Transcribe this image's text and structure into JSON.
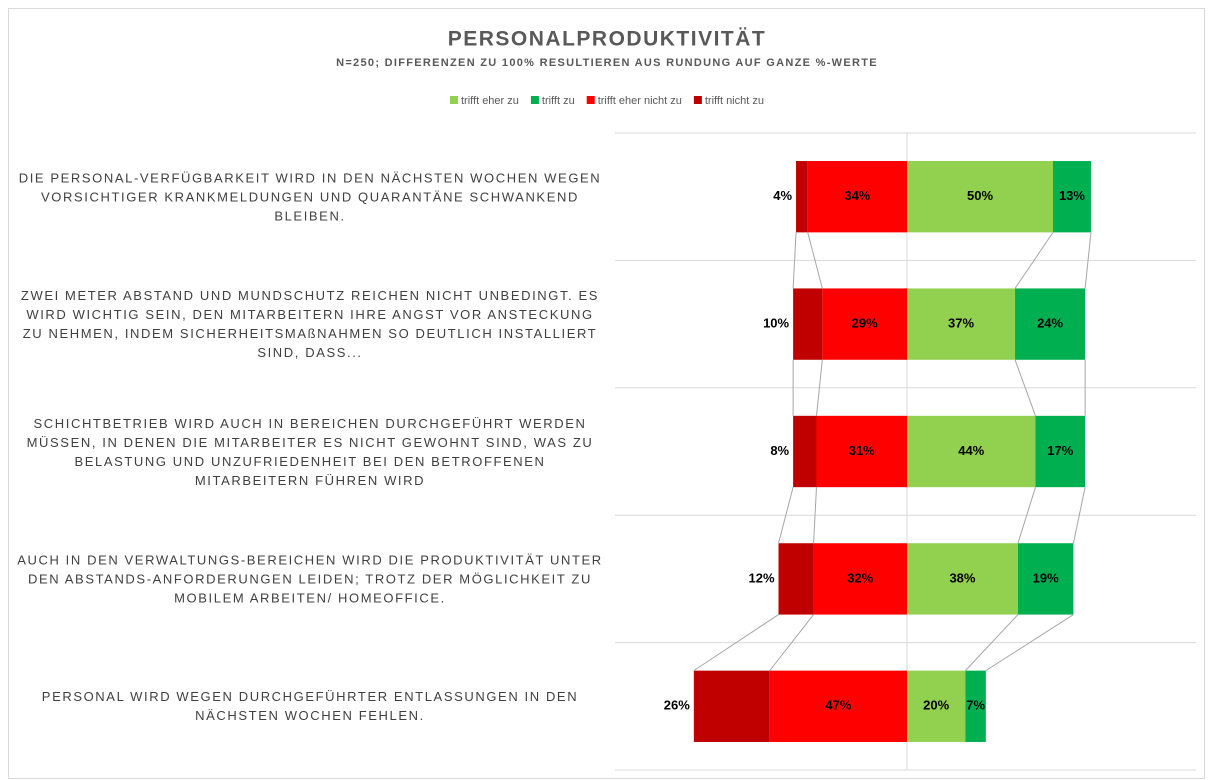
{
  "chart_data": {
    "type": "diverging_bar",
    "title": "PERSONALPRODUKTIVITÄT",
    "subtitle": "N=250; DIFFERENZEN ZU 100% RESULTIEREN AUS RUNDUNG AUF GANZE %-WERTE",
    "categories": [
      "DIE PERSONAL-VERFÜGBARKEIT WIRD IN DEN NÄCHSTEN WOCHEN WEGEN VORSICHTIGER KRANKMELDUNGEN UND QUARANTÄNE SCHWANKEND BLEIBEN.",
      "ZWEI METER ABSTAND UND MUNDSCHUTZ REICHEN NICHT UNBEDINGT. ES WIRD WICHTIG SEIN, DEN MITARBEITERN IHRE ANGST VOR ANSTECKUNG ZU NEHMEN, INDEM SICHERHEITSMAßNAHMEN SO DEUTLICH INSTALLIERT SIND, DASS...",
      "SCHICHTBETRIEB WIRD AUCH IN BEREICHEN DURCHGEFÜHRT WERDEN MÜSSEN, IN DENEN DIE MITARBEITER ES NICHT GEWOHNT SIND, WAS ZU BELASTUNG UND UNZUFRIEDENHEIT BEI DEN BETROFFENEN MITARBEITERN FÜHREN WIRD",
      "AUCH IN DEN VERWALTUNGS-BEREICHEN WIRD DIE PRODUKTIVITÄT UNTER DEN ABSTANDS-ANFORDERUNGEN LEIDEN; TROTZ DER MÖGLICHKEIT ZU MOBILEM ARBEITEN/ HOMEOFFICE.",
      "PERSONAL WIRD WEGEN DURCHGEFÜHRTER ENTLASSUNGEN IN DEN NÄCHSTEN WOCHEN FEHLEN."
    ],
    "series": [
      {
        "name": "trifft eher zu",
        "color": "#92d050",
        "side": "positive",
        "values": [
          50,
          37,
          44,
          38,
          20
        ],
        "value_labels": [
          "50%",
          "37%",
          "44%",
          "38%",
          "20%"
        ]
      },
      {
        "name": "trifft zu",
        "color": "#00b050",
        "side": "positive",
        "values": [
          13,
          24,
          17,
          19,
          7
        ],
        "value_labels": [
          "13%",
          "24%",
          "17%",
          "19%",
          "7%"
        ]
      },
      {
        "name": "trifft eher nicht zu",
        "color": "#ff0000",
        "side": "negative",
        "values": [
          34,
          29,
          31,
          32,
          47
        ],
        "value_labels": [
          "34%",
          "29%",
          "31%",
          "32%",
          "47%"
        ]
      },
      {
        "name": "trifft nicht zu",
        "color": "#c00000",
        "side": "negative",
        "values": [
          4,
          10,
          8,
          12,
          26
        ],
        "value_labels": [
          "4%",
          "10%",
          "8%",
          "12%",
          "26%"
        ]
      }
    ],
    "xlim": [
      -100,
      100
    ],
    "legend": "top"
  }
}
